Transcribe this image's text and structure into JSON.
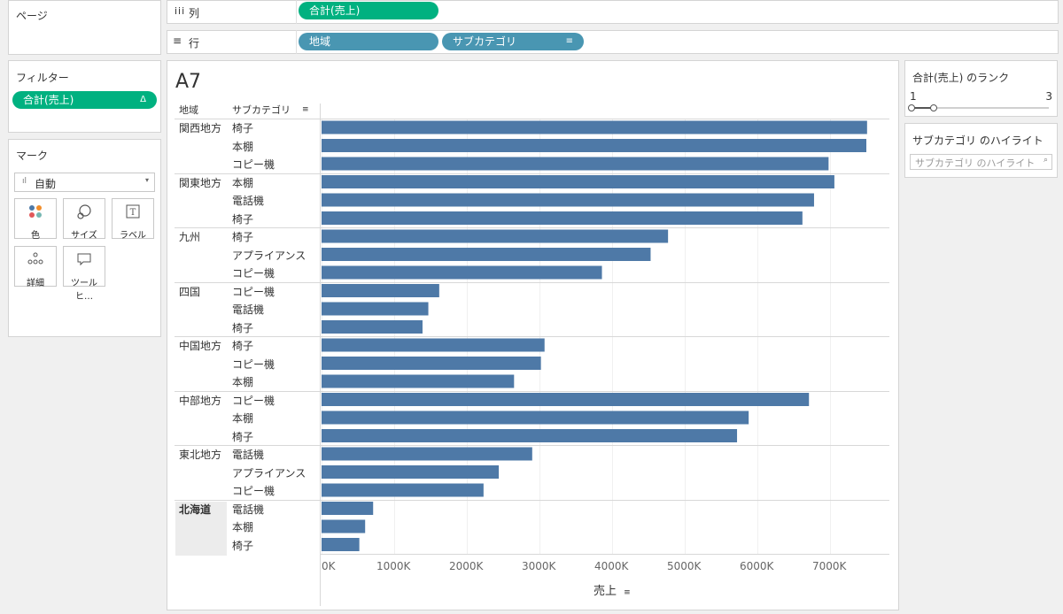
{
  "shelves": {
    "pages_label": "ページ",
    "columns_label": "列",
    "columns_pill": "合計(売上)",
    "rows_label": "行",
    "rows_pills": [
      "地域",
      "サブカテゴリ"
    ]
  },
  "filters": {
    "title": "フィルター",
    "pill": "合計(売上)"
  },
  "marks": {
    "title": "マーク",
    "type": "自動",
    "buttons": [
      "色",
      "サイズ",
      "ラベル",
      "詳細",
      "ツールヒ…"
    ]
  },
  "sheet": {
    "title": "A7",
    "col_header_region": "地域",
    "col_header_subcat": "サブカテゴリ",
    "x_axis_label": "売上",
    "x_ticks": [
      "0K",
      "1000K",
      "2000K",
      "3000K",
      "4000K",
      "5000K",
      "6000K",
      "7000K"
    ]
  },
  "rank_filter": {
    "title": "合計(売上) のランク",
    "min": "1",
    "max": "3"
  },
  "highlight": {
    "title": "サブカテゴリ のハイライト",
    "placeholder": "サブカテゴリ のハイライト"
  },
  "colors": {
    "bar": "#4e79a7",
    "green_pill": "#00b180",
    "blue_pill": "#4996b2"
  },
  "chart_data": {
    "type": "bar",
    "orientation": "horizontal",
    "xlabel": "売上",
    "xlim": [
      0,
      7500000
    ],
    "groups": [
      {
        "region": "関西地方",
        "rows": [
          {
            "subcategory": "椅子",
            "value": 7510000
          },
          {
            "subcategory": "本棚",
            "value": 7500000
          },
          {
            "subcategory": "コピー機",
            "value": 6980000
          }
        ]
      },
      {
        "region": "関東地方",
        "rows": [
          {
            "subcategory": "本棚",
            "value": 7060000
          },
          {
            "subcategory": "電話機",
            "value": 6780000
          },
          {
            "subcategory": "椅子",
            "value": 6620000
          }
        ]
      },
      {
        "region": "九州",
        "rows": [
          {
            "subcategory": "椅子",
            "value": 4770000
          },
          {
            "subcategory": "アプライアンス",
            "value": 4530000
          },
          {
            "subcategory": "コピー機",
            "value": 3860000
          }
        ]
      },
      {
        "region": "四国",
        "rows": [
          {
            "subcategory": "コピー機",
            "value": 1620000
          },
          {
            "subcategory": "電話機",
            "value": 1470000
          },
          {
            "subcategory": "椅子",
            "value": 1390000
          }
        ]
      },
      {
        "region": "中国地方",
        "rows": [
          {
            "subcategory": "椅子",
            "value": 3070000
          },
          {
            "subcategory": "コピー機",
            "value": 3020000
          },
          {
            "subcategory": "本棚",
            "value": 2650000
          }
        ]
      },
      {
        "region": "中部地方",
        "rows": [
          {
            "subcategory": "コピー機",
            "value": 6710000
          },
          {
            "subcategory": "本棚",
            "value": 5880000
          },
          {
            "subcategory": "椅子",
            "value": 5720000
          }
        ]
      },
      {
        "region": "東北地方",
        "rows": [
          {
            "subcategory": "電話機",
            "value": 2900000
          },
          {
            "subcategory": "アプライアンス",
            "value": 2440000
          },
          {
            "subcategory": "コピー機",
            "value": 2230000
          }
        ]
      },
      {
        "region": "北海道",
        "rows": [
          {
            "subcategory": "電話機",
            "value": 710000
          },
          {
            "subcategory": "本棚",
            "value": 600000
          },
          {
            "subcategory": "椅子",
            "value": 520000
          }
        ]
      }
    ]
  }
}
